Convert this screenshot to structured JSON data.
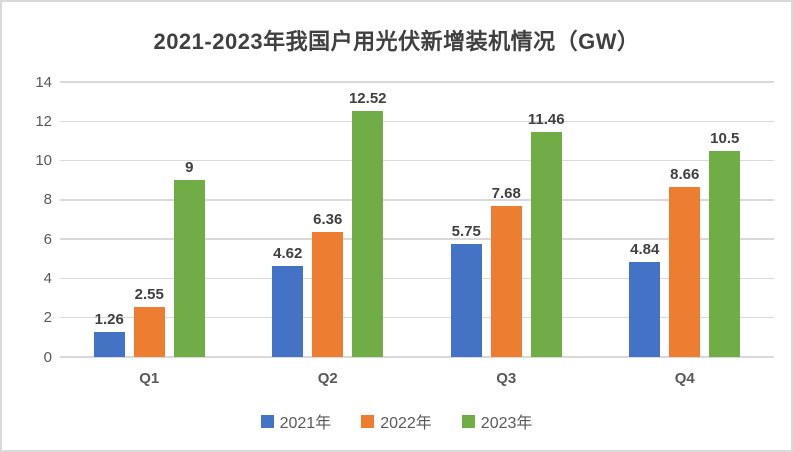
{
  "chart_data": {
    "type": "bar",
    "title": "2021-2023年我国户用光伏新增装机情况（GW）",
    "categories": [
      "Q1",
      "Q2",
      "Q3",
      "Q4"
    ],
    "series": [
      {
        "name": "2021年",
        "color": "#4472C4",
        "values": [
          1.26,
          4.62,
          5.75,
          4.84
        ]
      },
      {
        "name": "2022年",
        "color": "#ED7D31",
        "values": [
          2.55,
          6.36,
          7.68,
          8.66
        ]
      },
      {
        "name": "2023年",
        "color": "#70AD47",
        "values": [
          9,
          12.52,
          11.46,
          10.5
        ]
      }
    ],
    "xlabel": "",
    "ylabel": "",
    "ylim": [
      0,
      14
    ],
    "ytick_step": 2,
    "grid": "horizontal",
    "gridline_color": "#d9d9d9",
    "legend_position": "bottom",
    "data_labels": true,
    "label_color": "#404040",
    "axis_text_color": "#595959",
    "title_color": "#404040",
    "background": "#ffffff",
    "border_color": "#d9d9d9"
  }
}
